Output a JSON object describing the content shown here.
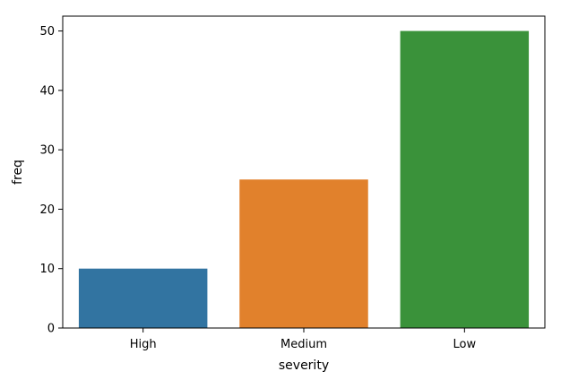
{
  "chart_data": {
    "type": "bar",
    "categories": [
      "High",
      "Medium",
      "Low"
    ],
    "values": [
      10,
      25,
      50
    ],
    "colors": [
      "#3274a1",
      "#e1812c",
      "#3a923a"
    ],
    "xlabel": "severity",
    "ylabel": "freq",
    "ylim": [
      0,
      52.5
    ],
    "yticks": [
      0,
      10,
      20,
      30,
      40,
      50
    ],
    "grid": false,
    "legend": "none"
  }
}
